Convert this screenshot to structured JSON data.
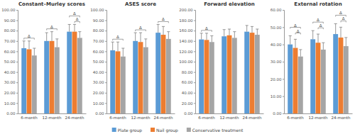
{
  "chart_data": [
    {
      "type": "bar",
      "title": "Constant–Murley scores",
      "categories": [
        "6-month",
        "12-month",
        "24-month"
      ],
      "series": [
        {
          "name": "Plate group",
          "color": "#5b9bd5",
          "values": [
            63,
            70,
            79
          ],
          "errors": [
            7,
            8,
            7
          ]
        },
        {
          "name": "Nail group",
          "color": "#ed7d31",
          "values": [
            62,
            70,
            79
          ],
          "errors": [
            8,
            9,
            7
          ]
        },
        {
          "name": "Conservative treatment",
          "color": "#a5a5a5",
          "values": [
            56,
            64,
            73
          ],
          "errors": [
            7,
            8,
            6
          ]
        }
      ],
      "ylim": [
        0,
        100
      ],
      "yticks": [
        {
          "value": 0,
          "label": "0.00"
        },
        {
          "value": 10,
          "label": "10.00"
        },
        {
          "value": 20,
          "label": "20.00"
        },
        {
          "value": 30,
          "label": "30.00"
        },
        {
          "value": 40,
          "label": "40.00"
        },
        {
          "value": 50,
          "label": "50.00"
        },
        {
          "value": 60,
          "label": "60.00"
        },
        {
          "value": 70,
          "label": "70.00"
        },
        {
          "value": 80,
          "label": "80.00"
        },
        {
          "value": 90,
          "label": "90.00"
        },
        {
          "value": 100,
          "label": "100.00"
        }
      ],
      "annotations": [
        {
          "text": "Δ",
          "category": "6-month",
          "between": [
            "Plate group",
            "Conservative treatment"
          ]
        },
        {
          "text": "Δ",
          "category": "12-month",
          "between": [
            "Plate group",
            "Conservative treatment"
          ]
        },
        {
          "text": "Δ",
          "category": "24-month",
          "between": [
            "Nail group",
            "Conservative treatment"
          ]
        },
        {
          "text": "Δ",
          "category": "24-month",
          "between": [
            "Plate group",
            "Conservative treatment"
          ]
        }
      ],
      "grid": false,
      "legend": "bottom"
    },
    {
      "type": "bar",
      "title": "ASES score",
      "categories": [
        "6-month",
        "12-month",
        "24-month"
      ],
      "series": [
        {
          "name": "Plate group",
          "color": "#5b9bd5",
          "values": [
            61,
            70,
            78
          ],
          "errors": [
            8,
            8,
            8
          ]
        },
        {
          "name": "Nail group",
          "color": "#ed7d31",
          "values": [
            60,
            69,
            76
          ],
          "errors": [
            9,
            9,
            8
          ]
        },
        {
          "name": "Conservative treatment",
          "color": "#a5a5a5",
          "values": [
            55,
            64,
            72
          ],
          "errors": [
            8,
            8,
            7
          ]
        }
      ],
      "ylim": [
        0,
        100
      ],
      "yticks": [
        {
          "value": 0,
          "label": "0.00"
        },
        {
          "value": 10,
          "label": "10.00"
        },
        {
          "value": 20,
          "label": "20.00"
        },
        {
          "value": 30,
          "label": "30.00"
        },
        {
          "value": 40,
          "label": "40.00"
        },
        {
          "value": 50,
          "label": "50.00"
        },
        {
          "value": 60,
          "label": "60.00"
        },
        {
          "value": 70,
          "label": "70.00"
        },
        {
          "value": 80,
          "label": "80.00"
        },
        {
          "value": 90,
          "label": "90.00"
        },
        {
          "value": 100,
          "label": "100.00"
        }
      ],
      "annotations": [
        {
          "text": "Δ",
          "category": "6-month",
          "between": [
            "Plate group",
            "Conservative treatment"
          ]
        },
        {
          "text": "Δ",
          "category": "12-month",
          "between": [
            "Plate group",
            "Conservative treatment"
          ]
        },
        {
          "text": "Δ",
          "category": "24-month",
          "between": [
            "Plate group",
            "Conservative treatment"
          ]
        }
      ],
      "grid": false
    },
    {
      "type": "bar",
      "title": "Forward elevation",
      "categories": [
        "6-month",
        "12-month",
        "24-month"
      ],
      "series": [
        {
          "name": "Plate group",
          "color": "#5b9bd5",
          "values": [
            143,
            149,
            158
          ],
          "errors": [
            12,
            13,
            12
          ]
        },
        {
          "name": "Nail group",
          "color": "#ed7d31",
          "values": [
            142,
            151,
            156
          ],
          "errors": [
            13,
            12,
            12
          ]
        },
        {
          "name": "Conservative treatment",
          "color": "#a5a5a5",
          "values": [
            138,
            146,
            152
          ],
          "errors": [
            12,
            12,
            11
          ]
        }
      ],
      "ylim": [
        0,
        200
      ],
      "yticks": [
        {
          "value": 0,
          "label": "0.00"
        },
        {
          "value": 20,
          "label": "20.00"
        },
        {
          "value": 40,
          "label": "40.00"
        },
        {
          "value": 60,
          "label": "60.00"
        },
        {
          "value": 80,
          "label": "80.00"
        },
        {
          "value": 100,
          "label": "100.00"
        },
        {
          "value": 120,
          "label": "120.00"
        },
        {
          "value": 140,
          "label": "140.00"
        },
        {
          "value": 160,
          "label": "160.00"
        },
        {
          "value": 180,
          "label": "180.00"
        },
        {
          "value": 200,
          "label": "200.00"
        }
      ],
      "annotations": [
        {
          "text": "Δ",
          "category": "6-month",
          "between": [
            "Plate group",
            "Conservative treatment"
          ]
        }
      ],
      "grid": false
    },
    {
      "type": "bar",
      "title": "External rotation",
      "categories": [
        "6-month",
        "12-month",
        "24-month"
      ],
      "series": [
        {
          "name": "Plate group",
          "color": "#5b9bd5",
          "values": [
            40,
            43,
            46
          ],
          "errors": [
            5,
            5,
            6
          ]
        },
        {
          "name": "Nail group",
          "color": "#ed7d31",
          "values": [
            38,
            41,
            44
          ],
          "errors": [
            5,
            5,
            6
          ]
        },
        {
          "name": "Conservative treatment",
          "color": "#a5a5a5",
          "values": [
            33,
            37,
            39
          ],
          "errors": [
            4,
            4,
            5
          ]
        }
      ],
      "ylim": [
        0,
        60
      ],
      "yticks": [
        {
          "value": 0,
          "label": "0.00"
        },
        {
          "value": 10,
          "label": "10.00"
        },
        {
          "value": 20,
          "label": "20.00"
        },
        {
          "value": 30,
          "label": "30.00"
        },
        {
          "value": 40,
          "label": "40.00"
        },
        {
          "value": 50,
          "label": "50.00"
        },
        {
          "value": 60,
          "label": "60.00"
        }
      ],
      "annotations": [
        {
          "text": "Δ",
          "category": "6-month",
          "between": [
            "Nail group",
            "Conservative treatment"
          ]
        },
        {
          "text": "Δ",
          "category": "6-month",
          "between": [
            "Plate group",
            "Conservative treatment"
          ]
        },
        {
          "text": "Δ",
          "category": "12-month",
          "between": [
            "Nail group",
            "Conservative treatment"
          ]
        },
        {
          "text": "Δ",
          "category": "12-month",
          "between": [
            "Plate group",
            "Conservative treatment"
          ]
        },
        {
          "text": "Δ",
          "category": "24-month",
          "between": [
            "Nail group",
            "Conservative treatment"
          ]
        },
        {
          "text": "Δ",
          "category": "24-month",
          "between": [
            "Plate group",
            "Conservative treatment"
          ]
        }
      ],
      "grid": false
    }
  ]
}
